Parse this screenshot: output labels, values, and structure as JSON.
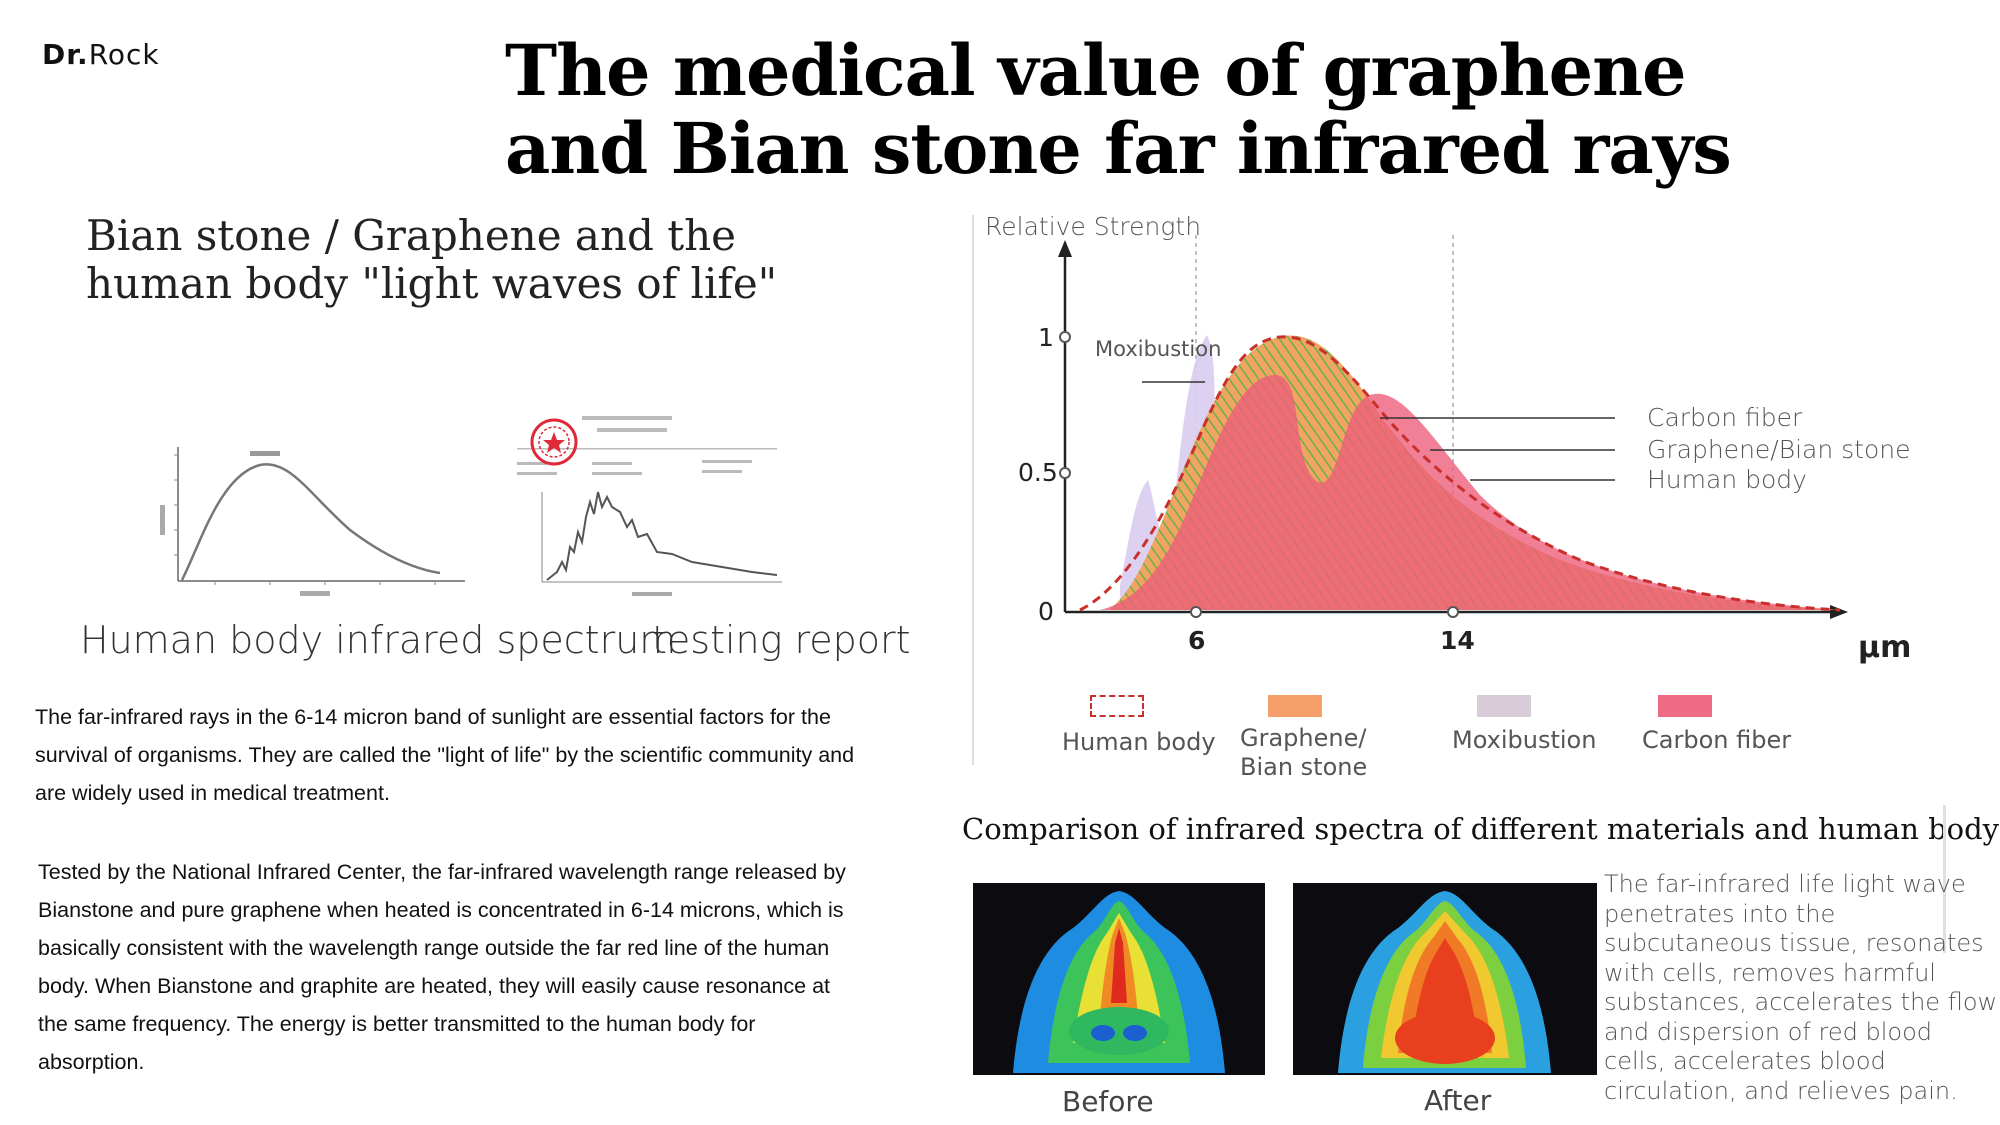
{
  "brand": {
    "prefix": "Dr.",
    "name": "Rock"
  },
  "title": {
    "line1": "The medical value of graphene",
    "line2": "and Bian stone far infrared rays"
  },
  "subtitle": {
    "line1": "Bian stone / Graphene and the",
    "line2": "human body \"light waves of life\""
  },
  "left_captions": {
    "spectrum": "Human body infrared spectrum",
    "report": "testing report"
  },
  "paragraphs": {
    "p1": [
      "The far-infrared rays in the 6-14 micron band of sunlight are essential factors for the",
      "survival of organisms. They are called the \"light of life\" by the scientific community and",
      "are widely used in medical treatment."
    ],
    "p2": [
      "Tested by the National Infrared Center, the far-infrared wavelength range released by",
      "Bianstone and pure graphene when heated is concentrated in 6-14 microns, which is",
      "basically consistent with the wavelength range outside the far red line of the human",
      "body. When Bianstone and graphite are heated, they will easily cause resonance at",
      "the same frequency. The energy is better transmitted to the human body for",
      "absorption."
    ]
  },
  "chart_data": {
    "type": "area",
    "ylabel": "Relative Strength",
    "xlabel": "μm",
    "y_ticks": [
      "0",
      "0.5",
      "1"
    ],
    "x_ticks": [
      "6",
      "14"
    ],
    "ylim": [
      0,
      1.1
    ],
    "annotations": [
      "Moxibustion",
      "Carbon fiber",
      "Graphene/Bian stone",
      "Human body"
    ],
    "legend": [
      {
        "label": "Human body",
        "color": "#d83a3a",
        "style": "dashed"
      },
      {
        "label": "Graphene/ Bian stone",
        "color": "#f5a06a"
      },
      {
        "label": "Moxibustion",
        "color": "#d9ccd9"
      },
      {
        "label": "Carbon fiber",
        "color": "#ef6a83"
      }
    ],
    "caption": "Comparison of infrared spectra of different materials and human body"
  },
  "thermal": {
    "before": "Before",
    "after": "After"
  },
  "side_text": "The far-infrared life light wave penetrates into the subcutaneous tissue, resonates with cells, removes harmful substances, accelerates the flow and dispersion of red blood cells, accelerates blood circulation, and relieves pain.",
  "colors": {
    "human": "#d83a3a",
    "graphene": "#f5a06a",
    "moxibustion": "#d9ccd9",
    "carbon": "#ef6a83",
    "hatch": "#6ab04c"
  }
}
